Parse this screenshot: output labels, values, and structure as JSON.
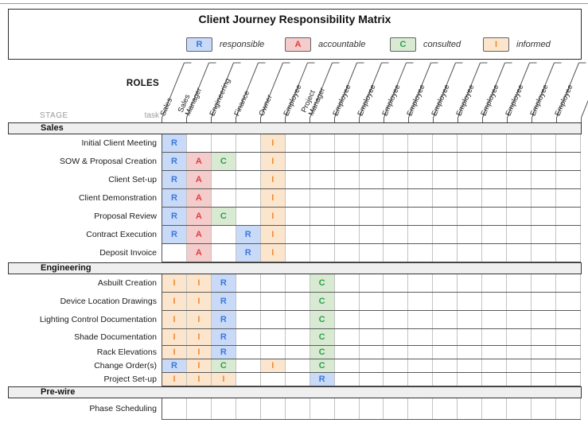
{
  "title": "Client Journey Responsibility Matrix",
  "labels": {
    "roles": "ROLES",
    "stage": "STAGE",
    "task": "task"
  },
  "legend": [
    {
      "key": "R",
      "label": "responsible"
    },
    {
      "key": "A",
      "label": "accountable"
    },
    {
      "key": "C",
      "label": "consulted"
    },
    {
      "key": "I",
      "label": "informed"
    }
  ],
  "palette": {
    "R": {
      "fg": "#3c78d8",
      "bg": "#c9daf8"
    },
    "A": {
      "fg": "#e03e3e",
      "bg": "#f4cccc"
    },
    "C": {
      "fg": "#2f9e4f",
      "bg": "#d9ead3"
    },
    "I": {
      "fg": "#f08932",
      "bg": "#fce5cd"
    },
    "band_bg": "#efefef"
  },
  "chart_data": {
    "type": "table",
    "columns": [
      "Sales",
      "Sales Manager",
      "Engineering",
      "Finance",
      "Owner",
      "Employee",
      "Project Manager",
      "Employee",
      "Employee",
      "Employee",
      "Employee",
      "Employee",
      "Employee",
      "Employee",
      "Employee",
      "Employee",
      "Employee"
    ],
    "sections": [
      {
        "name": "Sales",
        "rows": [
          {
            "task": "Initial Client Meeting",
            "marks": {
              "0": "R",
              "4": "I"
            }
          },
          {
            "task": "SOW & Proposal Creation",
            "marks": {
              "0": "R",
              "1": "A",
              "2": "C",
              "4": "I"
            }
          },
          {
            "task": "Client Set-up",
            "marks": {
              "0": "R",
              "1": "A",
              "4": "I"
            }
          },
          {
            "task": "Client Demonstration",
            "marks": {
              "0": "R",
              "1": "A",
              "4": "I"
            }
          },
          {
            "task": "Proposal Review",
            "marks": {
              "0": "R",
              "1": "A",
              "2": "C",
              "4": "I"
            }
          },
          {
            "task": "Contract Execution",
            "marks": {
              "0": "R",
              "1": "A",
              "3": "R",
              "4": "I"
            }
          },
          {
            "task": "Deposit Invoice",
            "marks": {
              "1": "A",
              "3": "R",
              "4": "I"
            }
          }
        ]
      },
      {
        "name": "Engineering",
        "rows": [
          {
            "task": "Asbuilt Creation",
            "marks": {
              "0": "I",
              "1": "I",
              "2": "R",
              "6": "C"
            }
          },
          {
            "task": "Device Location Drawings",
            "marks": {
              "0": "I",
              "1": "I",
              "2": "R",
              "6": "C"
            }
          },
          {
            "task": "Lighting Control Documentation",
            "marks": {
              "0": "I",
              "1": "I",
              "2": "R",
              "6": "C"
            }
          },
          {
            "task": "Shade Documentation",
            "marks": {
              "0": "I",
              "1": "I",
              "2": "R",
              "6": "C"
            }
          },
          {
            "task": "Rack Elevations",
            "marks": {
              "0": "I",
              "1": "I",
              "2": "R",
              "6": "C"
            }
          },
          {
            "task": "Change Order(s)",
            "marks": {
              "0": "R",
              "1": "I",
              "2": "C",
              "4": "I",
              "6": "C"
            }
          },
          {
            "task": "Project Set-up",
            "marks": {
              "0": "I",
              "1": "I",
              "2": "I",
              "6": "R"
            }
          }
        ]
      },
      {
        "name": "Pre-wire",
        "rows": [
          {
            "task": "Phase Scheduling",
            "marks": {}
          }
        ]
      }
    ]
  }
}
